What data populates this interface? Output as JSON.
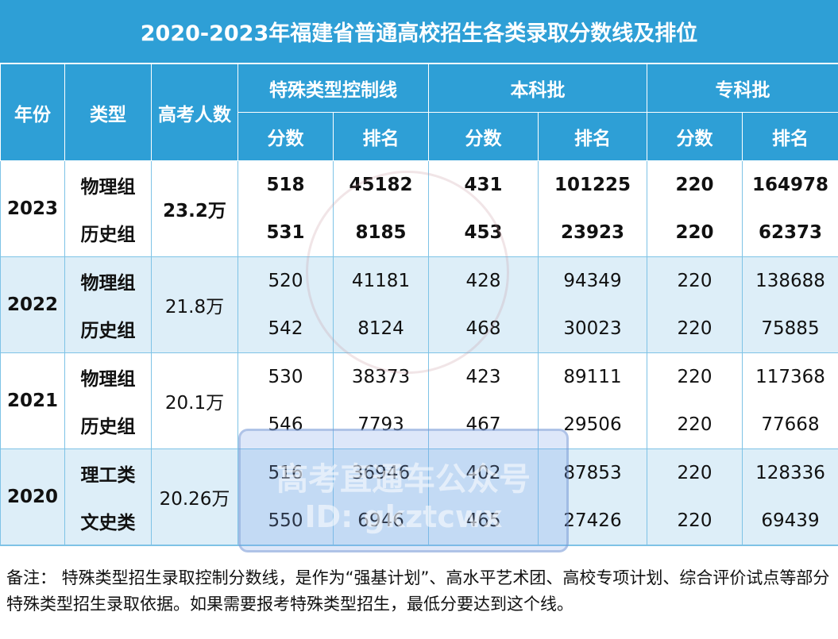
{
  "title": "2020-2023年福建省普通高校招生各类录取分数线及排位",
  "headers": {
    "year": "年份",
    "type": "类型",
    "examinees": "高考人数",
    "special": "特殊类型控制线",
    "undergrad": "本科批",
    "vocational": "专科批",
    "score": "分数",
    "rank": "排名"
  },
  "groups": [
    {
      "year": "2023",
      "examinees": "23.2万",
      "rows": [
        {
          "type": "物理组",
          "special_score": "518",
          "special_rank": "45182",
          "ug_score": "431",
          "ug_rank": "101225",
          "voc_score": "220",
          "voc_rank": "164978"
        },
        {
          "type": "历史组",
          "special_score": "531",
          "special_rank": "8185",
          "ug_score": "453",
          "ug_rank": "23923",
          "voc_score": "220",
          "voc_rank": "62373"
        }
      ]
    },
    {
      "year": "2022",
      "examinees": "21.8万",
      "rows": [
        {
          "type": "物理组",
          "special_score": "520",
          "special_rank": "41181",
          "ug_score": "428",
          "ug_rank": "94349",
          "voc_score": "220",
          "voc_rank": "138688"
        },
        {
          "type": "历史组",
          "special_score": "542",
          "special_rank": "8124",
          "ug_score": "468",
          "ug_rank": "30023",
          "voc_score": "220",
          "voc_rank": "75885"
        }
      ]
    },
    {
      "year": "2021",
      "examinees": "20.1万",
      "rows": [
        {
          "type": "物理组",
          "special_score": "530",
          "special_rank": "38373",
          "ug_score": "423",
          "ug_rank": "89111",
          "voc_score": "220",
          "voc_rank": "117368"
        },
        {
          "type": "历史组",
          "special_score": "546",
          "special_rank": "7793",
          "ug_score": "467",
          "ug_rank": "29506",
          "voc_score": "220",
          "voc_rank": "77668"
        }
      ]
    },
    {
      "year": "2020",
      "examinees": "20.26万",
      "rows": [
        {
          "type": "理工类",
          "special_score": "516",
          "special_rank": "36946",
          "ug_score": "402",
          "ug_rank": "87853",
          "voc_score": "220",
          "voc_rank": "128336"
        },
        {
          "type": "文史类",
          "special_score": "550",
          "special_rank": "6946",
          "ug_score": "465",
          "ug_rank": "27426",
          "voc_score": "220",
          "voc_rank": "69439"
        }
      ]
    }
  ],
  "note": "备注： 特殊类型招生录取控制分数线，是作为“强基计划”、高水平艺术团、高校专项计划、综合评价试点等部分特殊类型招生录取依据。如果需要报考特殊类型招生，最低分要达到这个线。",
  "watermark": {
    "line1": "高考直通车公众号",
    "line2": "ID: gkztcwx"
  },
  "colors": {
    "header_bg": "#2E9FD6",
    "stripe_bg": "#DDEEF8",
    "border": "#7EC3E6"
  }
}
